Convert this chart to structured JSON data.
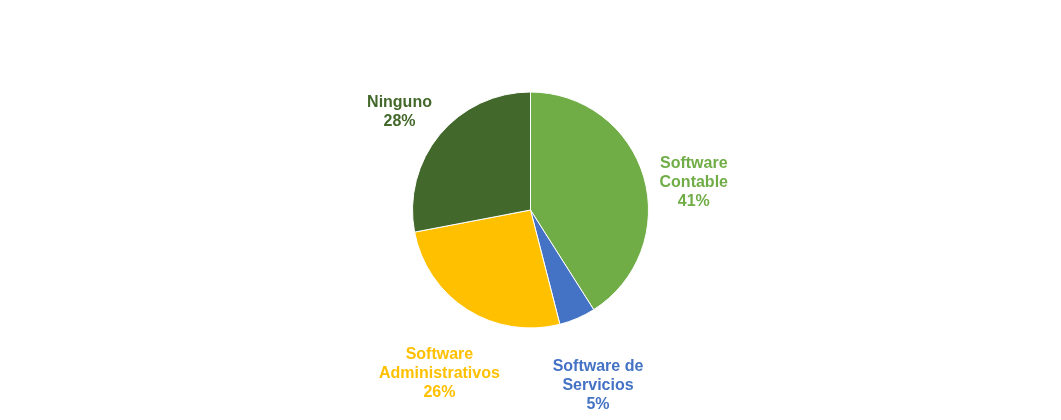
{
  "chart_data": {
    "type": "pie",
    "categories": [
      "Software Contable",
      "Software de Servicios",
      "Software Administrativos",
      "Ninguno"
    ],
    "values": [
      41,
      5,
      26,
      28
    ],
    "colors": [
      "#70ad47",
      "#4472c4",
      "#ffc000",
      "#43682b"
    ],
    "value_labels": [
      "41%",
      "5%",
      "26%",
      "28%"
    ],
    "legend": false
  }
}
